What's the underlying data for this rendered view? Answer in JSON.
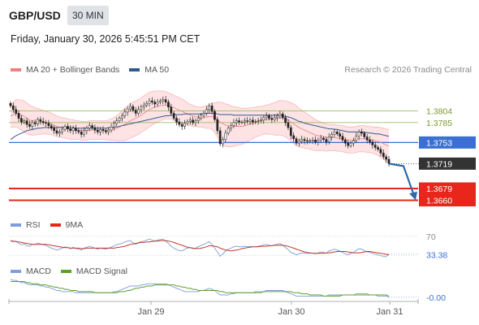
{
  "header": {
    "pair": "GBP/USD",
    "timeframe": "30 MIN",
    "datetime": "Friday, January 30, 2026 5:45:51 PM CET",
    "credit": "Research © 2026 Trading Central"
  },
  "colors": {
    "bollinger": "#f08080",
    "ma50": "#2f5a8f",
    "support": "#e8261c",
    "pivot": "#3b6fd4",
    "resistance": "#8fb34a",
    "price_label": "#333333",
    "rsi": "#7d9ed8",
    "rsi_ma": "#c0392b",
    "macd": "#7d9ed8",
    "macd_signal": "#5aa02c"
  },
  "chart_data": [
    {
      "type": "line",
      "panel": "price",
      "legend": [
        {
          "name": "MA 20 + Bollinger Bands",
          "color": "#f08080"
        },
        {
          "name": "MA 50",
          "color": "#2f5a8f"
        }
      ],
      "ylim": [
        1.3645,
        1.3845
      ],
      "x_ticks": [
        "Jan 29",
        "Jan 30",
        "Jan 31"
      ],
      "close": [
        1.3812,
        1.3806,
        1.38,
        1.3792,
        1.3786,
        1.3788,
        1.3782,
        1.3779,
        1.3785,
        1.3783,
        1.379,
        1.3787,
        1.3785,
        1.3784,
        1.378,
        1.3776,
        1.3772,
        1.3768,
        1.377,
        1.3774,
        1.3779,
        1.3775,
        1.3772,
        1.3776,
        1.3772,
        1.377,
        1.3766,
        1.3772,
        1.3776,
        1.378,
        1.3777,
        1.3773,
        1.377,
        1.3774,
        1.3772,
        1.377,
        1.3773,
        1.3778,
        1.3784,
        1.3788,
        1.3792,
        1.3796,
        1.3802,
        1.3807,
        1.3811,
        1.3805,
        1.38,
        1.3806,
        1.381,
        1.3813,
        1.3816,
        1.382,
        1.3818,
        1.3815,
        1.3818,
        1.382,
        1.3822,
        1.3818,
        1.381,
        1.38,
        1.3792,
        1.3786,
        1.3782,
        1.3779,
        1.3784,
        1.3787,
        1.3789,
        1.3785,
        1.3788,
        1.3792,
        1.3797,
        1.38,
        1.3806,
        1.3812,
        1.3803,
        1.379,
        1.3772,
        1.3751,
        1.3758,
        1.3768,
        1.3776,
        1.378,
        1.3785,
        1.3788,
        1.3786,
        1.3786,
        1.3788,
        1.3787,
        1.3789,
        1.3786,
        1.3787,
        1.3788,
        1.3789,
        1.3793,
        1.3796,
        1.3792,
        1.379,
        1.3793,
        1.3796,
        1.3799,
        1.3793,
        1.3785,
        1.3777,
        1.3764,
        1.3759,
        1.3752,
        1.3755,
        1.3758,
        1.3756,
        1.3755,
        1.3756,
        1.3757,
        1.3754,
        1.3757,
        1.376,
        1.3758,
        1.3754,
        1.3762,
        1.3766,
        1.377,
        1.3767,
        1.3763,
        1.3757,
        1.3752,
        1.3748,
        1.3752,
        1.3756,
        1.3763,
        1.377,
        1.3768,
        1.3762,
        1.3757,
        1.3754,
        1.3749,
        1.3745,
        1.3742,
        1.3736,
        1.373,
        1.3726,
        1.3719
      ],
      "ma20": [
        1.3795,
        1.3798,
        1.38,
        1.3799,
        1.3797,
        1.3795,
        1.3792,
        1.3789,
        1.3788,
        1.3787,
        1.3787,
        1.3786,
        1.3786,
        1.3785,
        1.3784,
        1.3783,
        1.3781,
        1.3779,
        1.3778,
        1.3777,
        1.3776,
        1.3775,
        1.3774,
        1.3774,
        1.3773,
        1.3773,
        1.3772,
        1.3772,
        1.3772,
        1.3773,
        1.3773,
        1.3773,
        1.3773,
        1.3773,
        1.3773,
        1.3773,
        1.3773,
        1.3774,
        1.3775,
        1.3776,
        1.3778,
        1.378,
        1.3782,
        1.3785,
        1.3788,
        1.379,
        1.3792,
        1.3794,
        1.3797,
        1.38,
        1.3803,
        1.3806,
        1.3808,
        1.381,
        1.3811,
        1.3812,
        1.3813,
        1.3813,
        1.3812,
        1.3811,
        1.3809,
        1.3807,
        1.3805,
        1.3803,
        1.3801,
        1.3799,
        1.3797,
        1.3796,
        1.3795,
        1.3794,
        1.3794,
        1.3794,
        1.3794,
        1.3795,
        1.3795,
        1.3793,
        1.379,
        1.3786,
        1.3783,
        1.3781,
        1.378,
        1.3779,
        1.3779,
        1.3779,
        1.3779,
        1.3779,
        1.378,
        1.3781,
        1.3783,
        1.3784,
        1.3786,
        1.3787,
        1.3788,
        1.3789,
        1.379,
        1.379,
        1.3791,
        1.3791,
        1.3792,
        1.3793,
        1.3792,
        1.3791,
        1.3789,
        1.3786,
        1.3783,
        1.378,
        1.3777,
        1.3775,
        1.3773,
        1.3771,
        1.3769,
        1.3767,
        1.3765,
        1.3764,
        1.3763,
        1.3762,
        1.3761,
        1.3761,
        1.3761,
        1.3761,
        1.376,
        1.376,
        1.3759,
        1.3758,
        1.3757,
        1.3757,
        1.3757,
        1.3758,
        1.3759,
        1.3759,
        1.3759,
        1.3758,
        1.3758,
        1.3757,
        1.3756,
        1.3755,
        1.3753,
        1.3751,
        1.3749,
        1.3747
      ],
      "bb_width": [
        0.0018,
        0.002,
        0.0022,
        0.0023,
        0.0024,
        0.0025,
        0.0025,
        0.0024,
        0.0023,
        0.0022,
        0.0021,
        0.002,
        0.0019,
        0.0018,
        0.0018,
        0.0017,
        0.0017,
        0.0017,
        0.0016,
        0.0016,
        0.0016,
        0.0016,
        0.0016,
        0.0016,
        0.0015,
        0.0015,
        0.0015,
        0.0015,
        0.0015,
        0.0015,
        0.0015,
        0.0015,
        0.0015,
        0.0015,
        0.0015,
        0.0015,
        0.0016,
        0.0017,
        0.0018,
        0.002,
        0.0022,
        0.0024,
        0.0026,
        0.0027,
        0.0028,
        0.0028,
        0.0028,
        0.0028,
        0.0028,
        0.0028,
        0.0028,
        0.0028,
        0.0027,
        0.0026,
        0.0025,
        0.0024,
        0.0023,
        0.0022,
        0.0021,
        0.002,
        0.002,
        0.002,
        0.002,
        0.002,
        0.0019,
        0.0018,
        0.0017,
        0.0017,
        0.0016,
        0.0016,
        0.0016,
        0.0017,
        0.0018,
        0.0019,
        0.0021,
        0.0024,
        0.0028,
        0.0032,
        0.0034,
        0.0034,
        0.0034,
        0.0033,
        0.0032,
        0.0031,
        0.003,
        0.0029,
        0.0028,
        0.0027,
        0.0026,
        0.0025,
        0.0024,
        0.0024,
        0.0023,
        0.0023,
        0.0023,
        0.0024,
        0.0025,
        0.0026,
        0.0027,
        0.0028,
        0.0028,
        0.0029,
        0.003,
        0.0031,
        0.0032,
        0.0032,
        0.0031,
        0.003,
        0.0029,
        0.0028,
        0.0027,
        0.0026,
        0.0025,
        0.0024,
        0.0023,
        0.0022,
        0.0022,
        0.0021,
        0.0021,
        0.0021,
        0.0021,
        0.0021,
        0.0021,
        0.0021,
        0.0021,
        0.0021,
        0.0021,
        0.0021,
        0.0021,
        0.0021,
        0.0021,
        0.0021,
        0.0021,
        0.0021,
        0.0022,
        0.0023,
        0.0024,
        0.0025,
        0.0026,
        0.0027
      ],
      "ma50": [
        1.3758,
        1.3761,
        1.3764,
        1.3766,
        1.3768,
        1.377,
        1.3772,
        1.3773,
        1.3774,
        1.3775,
        1.3776,
        1.3776,
        1.3777,
        1.3777,
        1.3777,
        1.3777,
        1.3777,
        1.3777,
        1.3777,
        1.3777,
        1.3777,
        1.3777,
        1.3777,
        1.3777,
        1.3776,
        1.3776,
        1.3776,
        1.3776,
        1.3776,
        1.3776,
        1.3776,
        1.3776,
        1.3776,
        1.3776,
        1.3776,
        1.3776,
        1.3777,
        1.3777,
        1.3778,
        1.3778,
        1.3779,
        1.378,
        1.3781,
        1.3782,
        1.3783,
        1.3784,
        1.3785,
        1.3786,
        1.3787,
        1.3788,
        1.3789,
        1.379,
        1.3791,
        1.3792,
        1.3793,
        1.3794,
        1.3795,
        1.3796,
        1.3796,
        1.3797,
        1.3797,
        1.3798,
        1.3798,
        1.3798,
        1.3799,
        1.3799,
        1.3799,
        1.3799,
        1.3799,
        1.3799,
        1.3799,
        1.38,
        1.38,
        1.38,
        1.38,
        1.38,
        1.3799,
        1.3798,
        1.3798,
        1.3798,
        1.3798,
        1.3798,
        1.3797,
        1.3797,
        1.3797,
        1.3797,
        1.3797,
        1.3797,
        1.3797,
        1.3797,
        1.3797,
        1.3797,
        1.3797,
        1.3797,
        1.3797,
        1.3797,
        1.3797,
        1.3797,
        1.3797,
        1.3797,
        1.3796,
        1.3795,
        1.3794,
        1.3793,
        1.3791,
        1.3789,
        1.3787,
        1.3786,
        1.3784,
        1.3783,
        1.3782,
        1.3781,
        1.378,
        1.3779,
        1.3778,
        1.3777,
        1.3776,
        1.3775,
        1.3775,
        1.3774,
        1.3774,
        1.3773,
        1.3772,
        1.3771,
        1.377,
        1.377,
        1.377,
        1.377,
        1.377,
        1.377,
        1.3769,
        1.3769,
        1.3768,
        1.3768,
        1.3767,
        1.3767,
        1.3766,
        1.3765,
        1.3764,
        1.3763
      ],
      "levels": [
        {
          "label": "1.3804",
          "value": 1.3804,
          "kind": "resistance"
        },
        {
          "label": "1.3785",
          "value": 1.3785,
          "kind": "resistance"
        },
        {
          "label": "1.3753",
          "value": 1.3753,
          "kind": "pivot"
        },
        {
          "label": "1.3719",
          "value": 1.3719,
          "kind": "last"
        },
        {
          "label": "1.3679",
          "value": 1.3679,
          "kind": "support"
        },
        {
          "label": "1.3660",
          "value": 1.366,
          "kind": "support"
        }
      ]
    },
    {
      "type": "line",
      "panel": "rsi",
      "legend": [
        {
          "name": "RSI",
          "color": "#7d9ed8"
        },
        {
          "name": "9MA",
          "color": "#c0392b"
        }
      ],
      "ylim": [
        20,
        80
      ],
      "y_ticks": [
        "70"
      ],
      "last_value": "33.38",
      "rsi": [
        62,
        58,
        60,
        55,
        52,
        54,
        50,
        49,
        53,
        52,
        56,
        54,
        52,
        51,
        48,
        45,
        43,
        41,
        43,
        45,
        48,
        46,
        44,
        47,
        44,
        43,
        41,
        45,
        47,
        49,
        47,
        45,
        43,
        45,
        44,
        43,
        45,
        47,
        50,
        52,
        54,
        55,
        58,
        60,
        61,
        56,
        53,
        57,
        59,
        60,
        62,
        64,
        62,
        60,
        62,
        63,
        64,
        60,
        55,
        49,
        45,
        42,
        40,
        39,
        43,
        45,
        46,
        44,
        45,
        48,
        51,
        53,
        56,
        59,
        53,
        45,
        37,
        28,
        33,
        39,
        43,
        45,
        48,
        49,
        48,
        48,
        49,
        48,
        49,
        48,
        48,
        49,
        50,
        52,
        53,
        51,
        50,
        52,
        53,
        55,
        51,
        46,
        42,
        36,
        34,
        31,
        33,
        35,
        34,
        34,
        34,
        35,
        33,
        35,
        37,
        36,
        34,
        39,
        41,
        43,
        41,
        39,
        36,
        33,
        31,
        34,
        36,
        40,
        44,
        43,
        40,
        37,
        36,
        34,
        32,
        31,
        29,
        28,
        27,
        33
      ],
      "rsi_ma": [
        60,
        60,
        59,
        58,
        57,
        56,
        55,
        54,
        53,
        53,
        53,
        53,
        53,
        53,
        52,
        51,
        50,
        49,
        48,
        47,
        46,
        46,
        45,
        45,
        45,
        45,
        44,
        44,
        45,
        45,
        45,
        45,
        45,
        45,
        45,
        45,
        45,
        45,
        45,
        46,
        47,
        48,
        49,
        51,
        53,
        54,
        55,
        56,
        57,
        57,
        58,
        58,
        59,
        60,
        60,
        61,
        61,
        61,
        60,
        59,
        57,
        55,
        53,
        51,
        49,
        47,
        46,
        45,
        44,
        44,
        45,
        46,
        48,
        50,
        50,
        49,
        48,
        45,
        43,
        41,
        40,
        39,
        40,
        41,
        42,
        44,
        45,
        46,
        47,
        48,
        48,
        48,
        49,
        49,
        49,
        50,
        50,
        51,
        51,
        51,
        51,
        50,
        49,
        47,
        45,
        43,
        41,
        39,
        37,
        36,
        35,
        34,
        34,
        34,
        34,
        34,
        35,
        35,
        36,
        37,
        38,
        38,
        38,
        38,
        37,
        36,
        35,
        35,
        35,
        36,
        37,
        38,
        38,
        37,
        36,
        35,
        34,
        33,
        32,
        31
      ],
      "threshold_lines": [
        30,
        70
      ]
    },
    {
      "type": "line",
      "panel": "macd",
      "legend": [
        {
          "name": "MACD",
          "color": "#7d9ed8"
        },
        {
          "name": "MACD Signal",
          "color": "#5aa02c"
        }
      ],
      "last_value": "-0.00",
      "ylim": [
        -0.0012,
        0.0012
      ],
      "macd": [
        0.001,
        0.0009,
        0.0009,
        0.0008,
        0.0007,
        0.0007,
        0.0006,
        0.0005,
        0.0005,
        0.0005,
        0.0005,
        0.0004,
        0.0004,
        0.0003,
        0.0003,
        0.0002,
        0.0001,
        0.0,
        0.0,
        -0.0001,
        -0.0001,
        -0.0001,
        -0.0001,
        -0.0001,
        -0.0002,
        -0.0002,
        -0.0002,
        -0.0002,
        -0.0002,
        -0.0002,
        -0.0002,
        -0.0002,
        -0.0002,
        -0.0002,
        -0.0002,
        -0.0002,
        -0.0002,
        -0.0002,
        -0.0001,
        -0.0001,
        0.0,
        0.0001,
        0.0002,
        0.0003,
        0.0004,
        0.0004,
        0.0004,
        0.0004,
        0.0005,
        0.0005,
        0.0006,
        0.0006,
        0.0006,
        0.0006,
        0.0006,
        0.0006,
        0.0006,
        0.0006,
        0.0005,
        0.0004,
        0.0003,
        0.0002,
        0.0001,
        0.0,
        -0.0001,
        -0.0001,
        -0.0001,
        -0.0001,
        -0.0001,
        -0.0001,
        0.0,
        0.0,
        0.0001,
        0.0002,
        0.0001,
        0.0,
        -0.0002,
        -0.0004,
        -0.0004,
        -0.0004,
        -0.0004,
        -0.0003,
        -0.0003,
        -0.0002,
        -0.0002,
        -0.0002,
        -0.0002,
        -0.0002,
        -0.0002,
        -0.0002,
        -0.0001,
        -0.0001,
        -0.0001,
        -0.0001,
        0.0,
        0.0,
        0.0,
        0.0,
        0.0,
        0.0,
        0.0,
        -0.0001,
        -0.0002,
        -0.0003,
        -0.0004,
        -0.0005,
        -0.0005,
        -0.0005,
        -0.0005,
        -0.0005,
        -0.0005,
        -0.0005,
        -0.0005,
        -0.0005,
        -0.0005,
        -0.0005,
        -0.0005,
        -0.0004,
        -0.0004,
        -0.0004,
        -0.0004,
        -0.0004,
        -0.0004,
        -0.0004,
        -0.0004,
        -0.0004,
        -0.0004,
        -0.0003,
        -0.0003,
        -0.0003,
        -0.0003,
        -0.0003,
        -0.0004,
        -0.0004,
        -0.0004,
        -0.0005,
        -0.0005,
        -0.0005,
        -0.0005,
        -0.0006
      ],
      "signal": [
        0.0008,
        0.0008,
        0.0008,
        0.0008,
        0.0008,
        0.0008,
        0.0007,
        0.0007,
        0.0006,
        0.0006,
        0.0006,
        0.0005,
        0.0005,
        0.0005,
        0.0004,
        0.0004,
        0.0003,
        0.0003,
        0.0002,
        0.0002,
        0.0001,
        0.0001,
        0.0,
        0.0,
        0.0,
        -0.0001,
        -0.0001,
        -0.0001,
        -0.0001,
        -0.0001,
        -0.0001,
        -0.0002,
        -0.0002,
        -0.0002,
        -0.0002,
        -0.0002,
        -0.0002,
        -0.0002,
        -0.0002,
        -0.0002,
        -0.0001,
        -0.0001,
        -0.0001,
        0.0,
        0.0,
        0.0001,
        0.0002,
        0.0002,
        0.0003,
        0.0003,
        0.0004,
        0.0004,
        0.0004,
        0.0005,
        0.0005,
        0.0005,
        0.0005,
        0.0005,
        0.0005,
        0.0005,
        0.0005,
        0.0004,
        0.0004,
        0.0003,
        0.0003,
        0.0002,
        0.0002,
        0.0001,
        0.0001,
        0.0,
        0.0,
        0.0,
        0.0,
        0.0,
        0.0,
        0.0,
        0.0,
        -0.0001,
        -0.0001,
        -0.0002,
        -0.0002,
        -0.0002,
        -0.0002,
        -0.0002,
        -0.0002,
        -0.0002,
        -0.0002,
        -0.0002,
        -0.0002,
        -0.0002,
        -0.0002,
        -0.0002,
        -0.0002,
        -0.0001,
        -0.0001,
        -0.0001,
        -0.0001,
        -0.0001,
        -0.0001,
        -0.0001,
        -0.0001,
        -0.0001,
        -0.0001,
        -0.0001,
        -0.0002,
        -0.0002,
        -0.0002,
        -0.0003,
        -0.0003,
        -0.0003,
        -0.0004,
        -0.0004,
        -0.0004,
        -0.0004,
        -0.0004,
        -0.0005,
        -0.0005,
        -0.0005,
        -0.0005,
        -0.0005,
        -0.0005,
        -0.0005,
        -0.0004,
        -0.0004,
        -0.0004,
        -0.0004,
        -0.0004,
        -0.0004,
        -0.0004,
        -0.0004,
        -0.0004,
        -0.0004,
        -0.0004,
        -0.0004,
        -0.0004,
        -0.0004,
        -0.0004,
        -0.0004,
        -0.0004,
        -0.0005
      ]
    }
  ]
}
